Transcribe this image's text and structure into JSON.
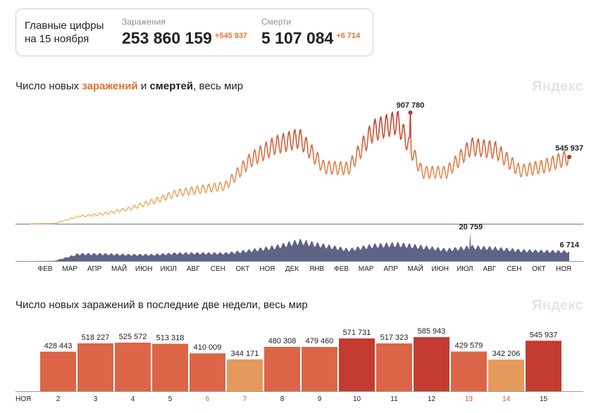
{
  "stats": {
    "title_line1": "Главные цифры",
    "title_line2": "на 15 ноября",
    "cases_label": "Заражения",
    "cases_value": "253 860 159",
    "cases_delta": "+545 937",
    "deaths_label": "Смерти",
    "deaths_value": "5 107 084",
    "deaths_delta": "+6 714"
  },
  "chart1": {
    "title_pre": "Число новых ",
    "title_infections": "заражений",
    "title_mid": " и ",
    "title_deaths": "смертей",
    "title_post": ", весь мир",
    "watermark": "Яндекс",
    "peak_cases_label": "907 780",
    "last_cases_label": "545 937",
    "peak_deaths_label": "20 759",
    "last_deaths_label": "6 714",
    "month_labels": [
      "ФЕВ",
      "МАР",
      "АПР",
      "МАЙ",
      "ИЮН",
      "ИЮЛ",
      "АВГ",
      "СЕН",
      "ОКТ",
      "НОЯ",
      "ДЕК",
      "ЯНВ",
      "ФЕВ",
      "МАР",
      "АПР",
      "МАЙ",
      "ИЮН",
      "ИЮЛ",
      "АВГ",
      "СЕН",
      "ОКТ",
      "НОЯ"
    ]
  },
  "chart2": {
    "title": "Число новых заражений в последние две недели, весь мир",
    "watermark": "Яндекс",
    "month_label": "НОЯ"
  },
  "chart_data": [
    {
      "type": "area",
      "series": [
        {
          "values_monthly_approx": [
            0,
            2000,
            60000,
            80000,
            120000,
            180000,
            250000,
            280000,
            310000,
            520000,
            640000,
            700000,
            460000,
            450000,
            760000,
            830000,
            420000,
            420000,
            630000,
            600000,
            430000,
            470000,
            545937
          ]
        },
        {
          "values_monthly_approx": [
            0,
            100,
            5000,
            5000,
            4500,
            4500,
            5500,
            5500,
            5500,
            7500,
            10000,
            14000,
            11000,
            8000,
            11000,
            12000,
            10000,
            8000,
            10000,
            9000,
            7500,
            7000,
            6714
          ]
        }
      ],
      "highlights": {
        "cases_peak": 907780,
        "cases_last": 545937,
        "deaths_peak": 20759,
        "deaths_last": 6714
      },
      "colors": {
        "low": "#f0c27a",
        "mid": "#e07a48",
        "high": "#b93428",
        "deaths": "#5f6486"
      }
    },
    {
      "type": "bar",
      "categories": [
        "2",
        "3",
        "4",
        "5",
        "6",
        "7",
        "8",
        "9",
        "10",
        "11",
        "12",
        "13",
        "14",
        "15"
      ],
      "values": [
        428443,
        518227,
        525572,
        513318,
        410009,
        344171,
        480308,
        479460,
        571731,
        517323,
        585943,
        429579,
        342206,
        545937
      ],
      "value_labels": [
        "428 443",
        "518 227",
        "525 572",
        "513 318",
        "410 009",
        "344 171",
        "480 308",
        "479 460",
        "571 731",
        "517 323",
        "585 943",
        "429 579",
        "342 206",
        "545 937"
      ],
      "weekend": [
        false,
        false,
        false,
        false,
        true,
        true,
        false,
        false,
        false,
        false,
        false,
        true,
        true,
        false
      ],
      "ylim": [
        0,
        640000
      ],
      "colors": {
        "light": "#e5995d",
        "mid": "#dc6548",
        "dark": "#c33b30",
        "weekend_tick": "#e0502a"
      }
    }
  ]
}
